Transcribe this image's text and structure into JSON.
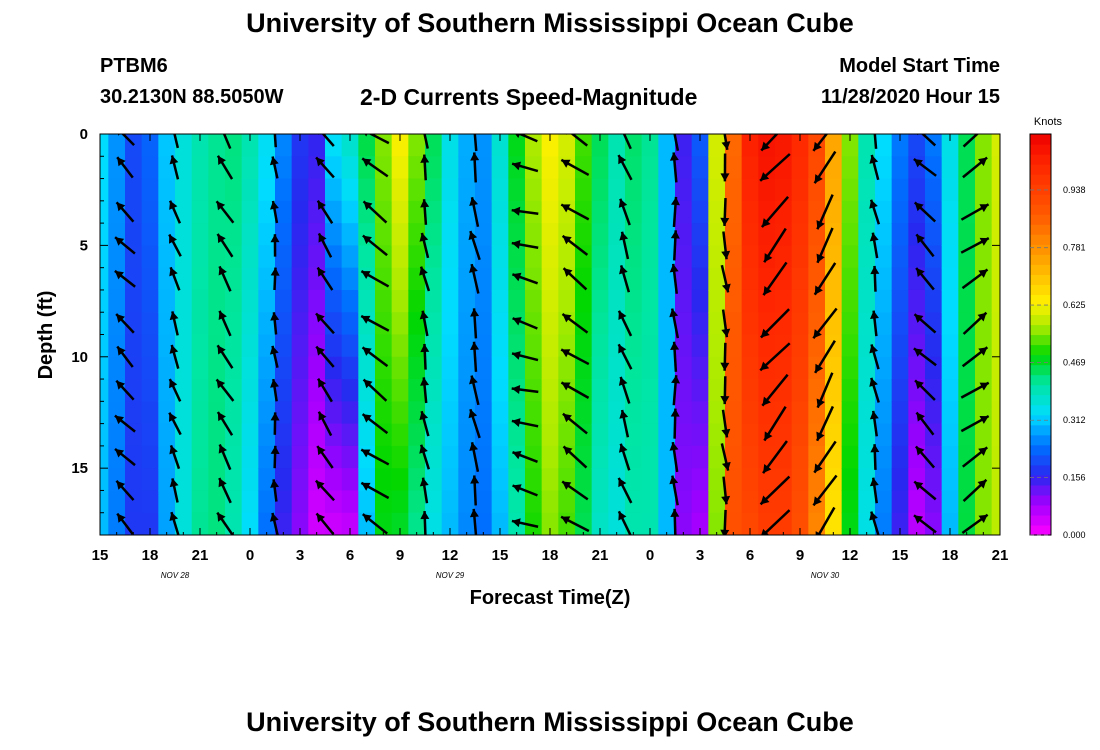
{
  "header": {
    "title": "University of Southern Mississippi Ocean Cube",
    "station": "PTBM6",
    "coords": "30.2130N 88.5050W",
    "subtitle": "2-D Currents Speed-Magnitude",
    "model_start_label": "Model Start Time",
    "model_start_value": "11/28/2020 Hour 15"
  },
  "footer": {
    "title": "University of Southern Mississippi Ocean Cube"
  },
  "chart_data": {
    "type": "heatmap",
    "title": "2-D Currents Speed-Magnitude",
    "xlabel": "Forecast Time(Z)",
    "ylabel": "Depth (ft)",
    "x_tick_labels": [
      "15",
      "18",
      "21",
      "0",
      "3",
      "6",
      "9",
      "12",
      "15",
      "18",
      "21",
      "0",
      "3",
      "6",
      "9",
      "12",
      "15",
      "18",
      "21"
    ],
    "x_range_hours": [
      0,
      54
    ],
    "date_labels": [
      {
        "text": "NOV  28",
        "hour": 4.5
      },
      {
        "text": "NOV  29",
        "hour": 21
      },
      {
        "text": "NOV  30",
        "hour": 43.5
      }
    ],
    "y_ticks": [
      0,
      5,
      10,
      15
    ],
    "ylim": [
      0,
      18
    ],
    "colorbar": {
      "unit": "Knots",
      "range": [
        0.0,
        1.09
      ],
      "tick_labels": [
        "0.938",
        "0.781",
        "0.625",
        "0.469",
        "0.312",
        "0.156",
        "0.000"
      ],
      "tick_values": [
        0.938,
        0.781,
        0.625,
        0.469,
        0.312,
        0.156,
        0.0
      ]
    },
    "time_hours": [
      0,
      1,
      2,
      3,
      4,
      5,
      6,
      7,
      8,
      9,
      10,
      11,
      12,
      13,
      14,
      15,
      16,
      17,
      18,
      19,
      20,
      21,
      22,
      23,
      24,
      25,
      26,
      27,
      28,
      29,
      30,
      31,
      32,
      33,
      34,
      35,
      36,
      37,
      38,
      39,
      40,
      41,
      42,
      43,
      44,
      45,
      46,
      47,
      48,
      49,
      50,
      51,
      52,
      53,
      54
    ],
    "surface_speed_knots": [
      0.33,
      0.27,
      0.2,
      0.23,
      0.31,
      0.36,
      0.4,
      0.42,
      0.43,
      0.4,
      0.34,
      0.26,
      0.18,
      0.16,
      0.34,
      0.38,
      0.46,
      0.55,
      0.63,
      0.55,
      0.45,
      0.35,
      0.29,
      0.27,
      0.37,
      0.48,
      0.57,
      0.63,
      0.6,
      0.52,
      0.45,
      0.4,
      0.44,
      0.42,
      0.3,
      0.15,
      0.22,
      0.6,
      0.85,
      1.02,
      1.05,
      1.04,
      1.0,
      0.92,
      0.75,
      0.55,
      0.4,
      0.33,
      0.25,
      0.2,
      0.25,
      0.35,
      0.45,
      0.55,
      0.6
    ],
    "bottom_speed_knots": [
      0.3,
      0.25,
      0.18,
      0.18,
      0.28,
      0.36,
      0.42,
      0.43,
      0.4,
      0.33,
      0.24,
      0.15,
      0.1,
      0.04,
      0.04,
      0.05,
      0.3,
      0.48,
      0.47,
      0.42,
      0.35,
      0.3,
      0.26,
      0.24,
      0.3,
      0.4,
      0.5,
      0.55,
      0.52,
      0.45,
      0.38,
      0.36,
      0.4,
      0.4,
      0.3,
      0.1,
      0.08,
      0.55,
      0.9,
      0.92,
      0.95,
      0.95,
      0.9,
      0.8,
      0.65,
      0.48,
      0.35,
      0.25,
      0.15,
      0.06,
      0.1,
      0.3,
      0.46,
      0.55,
      0.58
    ],
    "vector_columns_hours": [
      1.5,
      4.5,
      7.5,
      10.5,
      13.5,
      16.5,
      19.5,
      22.5,
      25.5,
      28.5,
      31.5,
      34.5,
      37.5,
      40.5,
      43.5,
      46.5,
      49.5,
      52.5
    ],
    "vector_depths_ft": [
      0,
      1.5,
      3.5,
      5,
      6.5,
      8.5,
      10,
      11.5,
      13,
      14.5,
      16,
      17.5
    ],
    "vector_direction_deg_clockwise_from_north": [
      -45,
      -20,
      -30,
      -5,
      -35,
      -55,
      -10,
      -10,
      -75,
      -55,
      -20,
      -3,
      175,
      -140,
      -150,
      -10,
      -45,
      55
    ],
    "vector_speed_knots": [
      0.35,
      0.3,
      0.42,
      0.2,
      0.4,
      0.6,
      0.35,
      0.55,
      0.4,
      0.6,
      0.45,
      0.55,
      0.45,
      1.02,
      0.9,
      0.35,
      0.45,
      0.6
    ]
  }
}
